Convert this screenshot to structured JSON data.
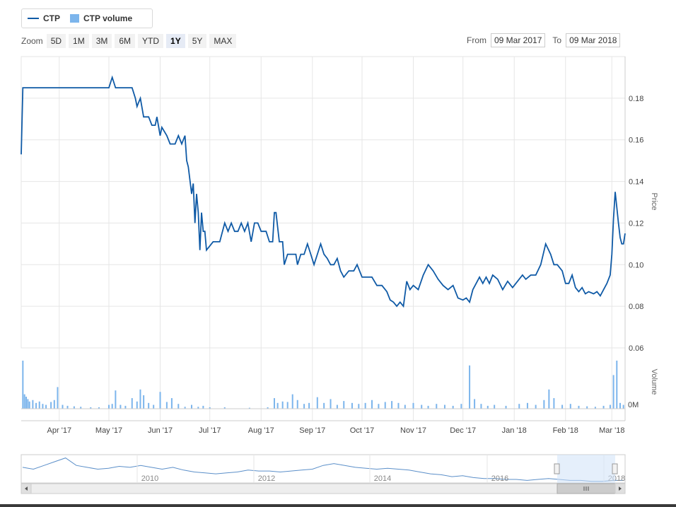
{
  "legend": {
    "series1": "CTP",
    "series2": "CTP volume"
  },
  "zoom": {
    "label": "Zoom",
    "buttons": [
      "5D",
      "1M",
      "3M",
      "6M",
      "YTD",
      "1Y",
      "5Y",
      "MAX"
    ],
    "active": "1Y"
  },
  "range": {
    "from_label": "From",
    "from_value": "09 Mar 2017",
    "to_label": "To",
    "to_value": "09 Mar 2018"
  },
  "colors": {
    "price_line": "#0f5aa6",
    "volume_bar": "#7cb5ec",
    "grid": "#e6e6e6",
    "navigator_mask": "#cfe2f7"
  },
  "chart_data": {
    "type": "line",
    "title": "",
    "price": {
      "name": "CTP",
      "ylabel": "Price",
      "ylim": [
        0.06,
        0.2
      ],
      "yticks": [
        "0.18",
        "0.16",
        "0.14",
        "0.12",
        "0.10",
        "0.08",
        "0.06"
      ],
      "points": [
        [
          "2017-03-09",
          0.153
        ],
        [
          "2017-03-10",
          0.185
        ],
        [
          "2017-03-20",
          0.185
        ],
        [
          "2017-04-03",
          0.185
        ],
        [
          "2017-04-17",
          0.185
        ],
        [
          "2017-04-27",
          0.185
        ],
        [
          "2017-05-01",
          0.185
        ],
        [
          "2017-05-03",
          0.19
        ],
        [
          "2017-05-05",
          0.185
        ],
        [
          "2017-05-10",
          0.185
        ],
        [
          "2017-05-15",
          0.185
        ],
        [
          "2017-05-17",
          0.18
        ],
        [
          "2017-05-18",
          0.176
        ],
        [
          "2017-05-19",
          0.178
        ],
        [
          "2017-05-20",
          0.18
        ],
        [
          "2017-05-22",
          0.171
        ],
        [
          "2017-05-25",
          0.171
        ],
        [
          "2017-05-27",
          0.167
        ],
        [
          "2017-05-29",
          0.167
        ],
        [
          "2017-05-30",
          0.171
        ],
        [
          "2017-06-01",
          0.162
        ],
        [
          "2017-06-02",
          0.166
        ],
        [
          "2017-06-05",
          0.162
        ],
        [
          "2017-06-07",
          0.158
        ],
        [
          "2017-06-10",
          0.158
        ],
        [
          "2017-06-12",
          0.162
        ],
        [
          "2017-06-14",
          0.158
        ],
        [
          "2017-06-16",
          0.162
        ],
        [
          "2017-06-17",
          0.15
        ],
        [
          "2017-06-18",
          0.147
        ],
        [
          "2017-06-20",
          0.134
        ],
        [
          "2017-06-21",
          0.139
        ],
        [
          "2017-06-22",
          0.12
        ],
        [
          "2017-06-23",
          0.134
        ],
        [
          "2017-06-24",
          0.125
        ],
        [
          "2017-06-25",
          0.107
        ],
        [
          "2017-06-26",
          0.125
        ],
        [
          "2017-06-27",
          0.116
        ],
        [
          "2017-06-28",
          0.116
        ],
        [
          "2017-06-29",
          0.107
        ],
        [
          "2017-07-03",
          0.111
        ],
        [
          "2017-07-07",
          0.111
        ],
        [
          "2017-07-10",
          0.12
        ],
        [
          "2017-07-12",
          0.116
        ],
        [
          "2017-07-14",
          0.12
        ],
        [
          "2017-07-16",
          0.116
        ],
        [
          "2017-07-18",
          0.116
        ],
        [
          "2017-07-20",
          0.12
        ],
        [
          "2017-07-22",
          0.116
        ],
        [
          "2017-07-24",
          0.12
        ],
        [
          "2017-07-26",
          0.111
        ],
        [
          "2017-07-28",
          0.12
        ],
        [
          "2017-07-30",
          0.12
        ],
        [
          "2017-08-01",
          0.116
        ],
        [
          "2017-08-04",
          0.116
        ],
        [
          "2017-08-06",
          0.111
        ],
        [
          "2017-08-08",
          0.111
        ],
        [
          "2017-08-09",
          0.125
        ],
        [
          "2017-08-10",
          0.125
        ],
        [
          "2017-08-12",
          0.111
        ],
        [
          "2017-08-14",
          0.111
        ],
        [
          "2017-08-15",
          0.1
        ],
        [
          "2017-08-17",
          0.105
        ],
        [
          "2017-08-20",
          0.105
        ],
        [
          "2017-08-22",
          0.105
        ],
        [
          "2017-08-23",
          0.1
        ],
        [
          "2017-08-25",
          0.105
        ],
        [
          "2017-08-27",
          0.105
        ],
        [
          "2017-08-29",
          0.11
        ],
        [
          "2017-08-31",
          0.105
        ],
        [
          "2017-09-02",
          0.1
        ],
        [
          "2017-09-04",
          0.105
        ],
        [
          "2017-09-06",
          0.11
        ],
        [
          "2017-09-08",
          0.105
        ],
        [
          "2017-09-10",
          0.103
        ],
        [
          "2017-09-12",
          0.1
        ],
        [
          "2017-09-14",
          0.1
        ],
        [
          "2017-09-16",
          0.103
        ],
        [
          "2017-09-18",
          0.097
        ],
        [
          "2017-09-20",
          0.094
        ],
        [
          "2017-09-23",
          0.097
        ],
        [
          "2017-09-26",
          0.097
        ],
        [
          "2017-09-28",
          0.1
        ],
        [
          "2017-10-01",
          0.094
        ],
        [
          "2017-10-04",
          0.094
        ],
        [
          "2017-10-07",
          0.094
        ],
        [
          "2017-10-10",
          0.09
        ],
        [
          "2017-10-13",
          0.09
        ],
        [
          "2017-10-16",
          0.087
        ],
        [
          "2017-10-18",
          0.083
        ],
        [
          "2017-10-20",
          0.082
        ],
        [
          "2017-10-22",
          0.08
        ],
        [
          "2017-10-24",
          0.082
        ],
        [
          "2017-10-26",
          0.08
        ],
        [
          "2017-10-28",
          0.092
        ],
        [
          "2017-10-30",
          0.088
        ],
        [
          "2017-11-01",
          0.09
        ],
        [
          "2017-11-04",
          0.088
        ],
        [
          "2017-11-07",
          0.095
        ],
        [
          "2017-11-10",
          0.1
        ],
        [
          "2017-11-13",
          0.097
        ],
        [
          "2017-11-16",
          0.093
        ],
        [
          "2017-11-19",
          0.09
        ],
        [
          "2017-11-22",
          0.088
        ],
        [
          "2017-11-25",
          0.09
        ],
        [
          "2017-11-28",
          0.084
        ],
        [
          "2017-12-01",
          0.083
        ],
        [
          "2017-12-03",
          0.084
        ],
        [
          "2017-12-05",
          0.082
        ],
        [
          "2017-12-07",
          0.088
        ],
        [
          "2017-12-09",
          0.091
        ],
        [
          "2017-12-11",
          0.094
        ],
        [
          "2017-12-13",
          0.091
        ],
        [
          "2017-12-15",
          0.094
        ],
        [
          "2017-12-17",
          0.091
        ],
        [
          "2017-12-19",
          0.095
        ],
        [
          "2017-12-22",
          0.093
        ],
        [
          "2017-12-25",
          0.088
        ],
        [
          "2017-12-28",
          0.092
        ],
        [
          "2017-12-31",
          0.089
        ],
        [
          "2018-01-03",
          0.092
        ],
        [
          "2018-01-06",
          0.095
        ],
        [
          "2018-01-08",
          0.093
        ],
        [
          "2018-01-11",
          0.095
        ],
        [
          "2018-01-14",
          0.095
        ],
        [
          "2018-01-17",
          0.1
        ],
        [
          "2018-01-20",
          0.11
        ],
        [
          "2018-01-23",
          0.105
        ],
        [
          "2018-01-25",
          0.1
        ],
        [
          "2018-01-27",
          0.1
        ],
        [
          "2018-01-30",
          0.097
        ],
        [
          "2018-02-01",
          0.091
        ],
        [
          "2018-02-03",
          0.091
        ],
        [
          "2018-02-05",
          0.095
        ],
        [
          "2018-02-07",
          0.089
        ],
        [
          "2018-02-09",
          0.087
        ],
        [
          "2018-02-11",
          0.089
        ],
        [
          "2018-02-13",
          0.086
        ],
        [
          "2018-02-15",
          0.087
        ],
        [
          "2018-02-18",
          0.086
        ],
        [
          "2018-02-20",
          0.087
        ],
        [
          "2018-02-22",
          0.085
        ],
        [
          "2018-02-24",
          0.088
        ],
        [
          "2018-02-26",
          0.091
        ],
        [
          "2018-02-28",
          0.095
        ],
        [
          "2018-03-01",
          0.105
        ],
        [
          "2018-03-02",
          0.122
        ],
        [
          "2018-03-03",
          0.135
        ],
        [
          "2018-03-05",
          0.12
        ],
        [
          "2018-03-06",
          0.113
        ],
        [
          "2018-03-07",
          0.11
        ],
        [
          "2018-03-08",
          0.11
        ],
        [
          "2018-03-09",
          0.115
        ]
      ]
    },
    "volume": {
      "name": "CTP volume",
      "ylabel": "Volume",
      "ytick": "0M",
      "ymax": 100,
      "bars": [
        [
          "2017-03-10",
          100
        ],
        [
          "2017-03-11",
          30
        ],
        [
          "2017-03-12",
          25
        ],
        [
          "2017-03-13",
          20
        ],
        [
          "2017-03-14",
          15
        ],
        [
          "2017-03-16",
          18
        ],
        [
          "2017-03-18",
          12
        ],
        [
          "2017-03-20",
          15
        ],
        [
          "2017-03-22",
          10
        ],
        [
          "2017-03-24",
          8
        ],
        [
          "2017-03-27",
          14
        ],
        [
          "2017-03-29",
          18
        ],
        [
          "2017-03-31",
          45
        ],
        [
          "2017-04-03",
          8
        ],
        [
          "2017-04-06",
          6
        ],
        [
          "2017-04-10",
          5
        ],
        [
          "2017-04-14",
          4
        ],
        [
          "2017-04-20",
          3
        ],
        [
          "2017-04-25",
          3
        ],
        [
          "2017-05-01",
          8
        ],
        [
          "2017-05-03",
          10
        ],
        [
          "2017-05-05",
          38
        ],
        [
          "2017-05-08",
          8
        ],
        [
          "2017-05-11",
          6
        ],
        [
          "2017-05-15",
          22
        ],
        [
          "2017-05-18",
          15
        ],
        [
          "2017-05-20",
          40
        ],
        [
          "2017-05-22",
          28
        ],
        [
          "2017-05-25",
          12
        ],
        [
          "2017-05-28",
          8
        ],
        [
          "2017-06-01",
          35
        ],
        [
          "2017-06-05",
          14
        ],
        [
          "2017-06-08",
          22
        ],
        [
          "2017-06-12",
          10
        ],
        [
          "2017-06-16",
          4
        ],
        [
          "2017-06-20",
          8
        ],
        [
          "2017-06-24",
          4
        ],
        [
          "2017-06-27",
          6
        ],
        [
          "2017-07-01",
          3
        ],
        [
          "2017-07-10",
          3
        ],
        [
          "2017-07-25",
          2
        ],
        [
          "2017-08-05",
          3
        ],
        [
          "2017-08-09",
          22
        ],
        [
          "2017-08-11",
          12
        ],
        [
          "2017-08-14",
          15
        ],
        [
          "2017-08-17",
          14
        ],
        [
          "2017-08-20",
          30
        ],
        [
          "2017-08-23",
          18
        ],
        [
          "2017-08-27",
          10
        ],
        [
          "2017-08-30",
          12
        ],
        [
          "2017-09-04",
          24
        ],
        [
          "2017-09-08",
          12
        ],
        [
          "2017-09-12",
          20
        ],
        [
          "2017-09-16",
          8
        ],
        [
          "2017-09-20",
          16
        ],
        [
          "2017-09-25",
          12
        ],
        [
          "2017-09-29",
          10
        ],
        [
          "2017-10-03",
          12
        ],
        [
          "2017-10-07",
          18
        ],
        [
          "2017-10-11",
          10
        ],
        [
          "2017-10-15",
          14
        ],
        [
          "2017-10-19",
          16
        ],
        [
          "2017-10-23",
          12
        ],
        [
          "2017-10-27",
          8
        ],
        [
          "2017-11-01",
          12
        ],
        [
          "2017-11-06",
          8
        ],
        [
          "2017-11-10",
          6
        ],
        [
          "2017-11-15",
          10
        ],
        [
          "2017-11-20",
          8
        ],
        [
          "2017-11-25",
          6
        ],
        [
          "2017-11-30",
          10
        ],
        [
          "2017-12-05",
          90
        ],
        [
          "2017-12-08",
          20
        ],
        [
          "2017-12-12",
          10
        ],
        [
          "2017-12-16",
          6
        ],
        [
          "2017-12-20",
          8
        ],
        [
          "2017-12-27",
          6
        ],
        [
          "2018-01-04",
          10
        ],
        [
          "2018-01-09",
          12
        ],
        [
          "2018-01-14",
          8
        ],
        [
          "2018-01-19",
          18
        ],
        [
          "2018-01-22",
          40
        ],
        [
          "2018-01-25",
          22
        ],
        [
          "2018-01-30",
          8
        ],
        [
          "2018-02-04",
          10
        ],
        [
          "2018-02-09",
          6
        ],
        [
          "2018-02-14",
          5
        ],
        [
          "2018-02-19",
          4
        ],
        [
          "2018-02-24",
          6
        ],
        [
          "2018-02-28",
          8
        ],
        [
          "2018-03-02",
          70
        ],
        [
          "2018-03-04",
          100
        ],
        [
          "2018-03-06",
          12
        ],
        [
          "2018-03-08",
          8
        ]
      ]
    },
    "xaxis": {
      "ticks": [
        [
          "2017-04-01",
          "Apr '17"
        ],
        [
          "2017-05-01",
          "May '17"
        ],
        [
          "2017-06-01",
          "Jun '17"
        ],
        [
          "2017-07-01",
          "Jul '17"
        ],
        [
          "2017-08-01",
          "Aug '17"
        ],
        [
          "2017-09-01",
          "Sep '17"
        ],
        [
          "2017-10-01",
          "Oct '17"
        ],
        [
          "2017-11-01",
          "Nov '17"
        ],
        [
          "2017-12-01",
          "Dec '17"
        ],
        [
          "2018-01-01",
          "Jan '18"
        ],
        [
          "2018-02-01",
          "Feb '18"
        ],
        [
          "2018-03-01",
          "Mar '18"
        ]
      ]
    },
    "navigator": {
      "year_labels": [
        "2010",
        "2012",
        "2014",
        "2016",
        "2018"
      ],
      "series": [
        0.2,
        0.18,
        0.22,
        0.26,
        0.3,
        0.22,
        0.2,
        0.18,
        0.19,
        0.21,
        0.2,
        0.22,
        0.2,
        0.18,
        0.2,
        0.17,
        0.15,
        0.14,
        0.13,
        0.14,
        0.15,
        0.17,
        0.16,
        0.16,
        0.15,
        0.16,
        0.17,
        0.18,
        0.22,
        0.24,
        0.22,
        0.2,
        0.19,
        0.18,
        0.19,
        0.18,
        0.17,
        0.15,
        0.13,
        0.12,
        0.1,
        0.11,
        0.09,
        0.08,
        0.08,
        0.07,
        0.07,
        0.06,
        0.07,
        0.08,
        0.07,
        0.06,
        0.06,
        0.05,
        0.05,
        0.06,
        0.06
      ]
    }
  }
}
